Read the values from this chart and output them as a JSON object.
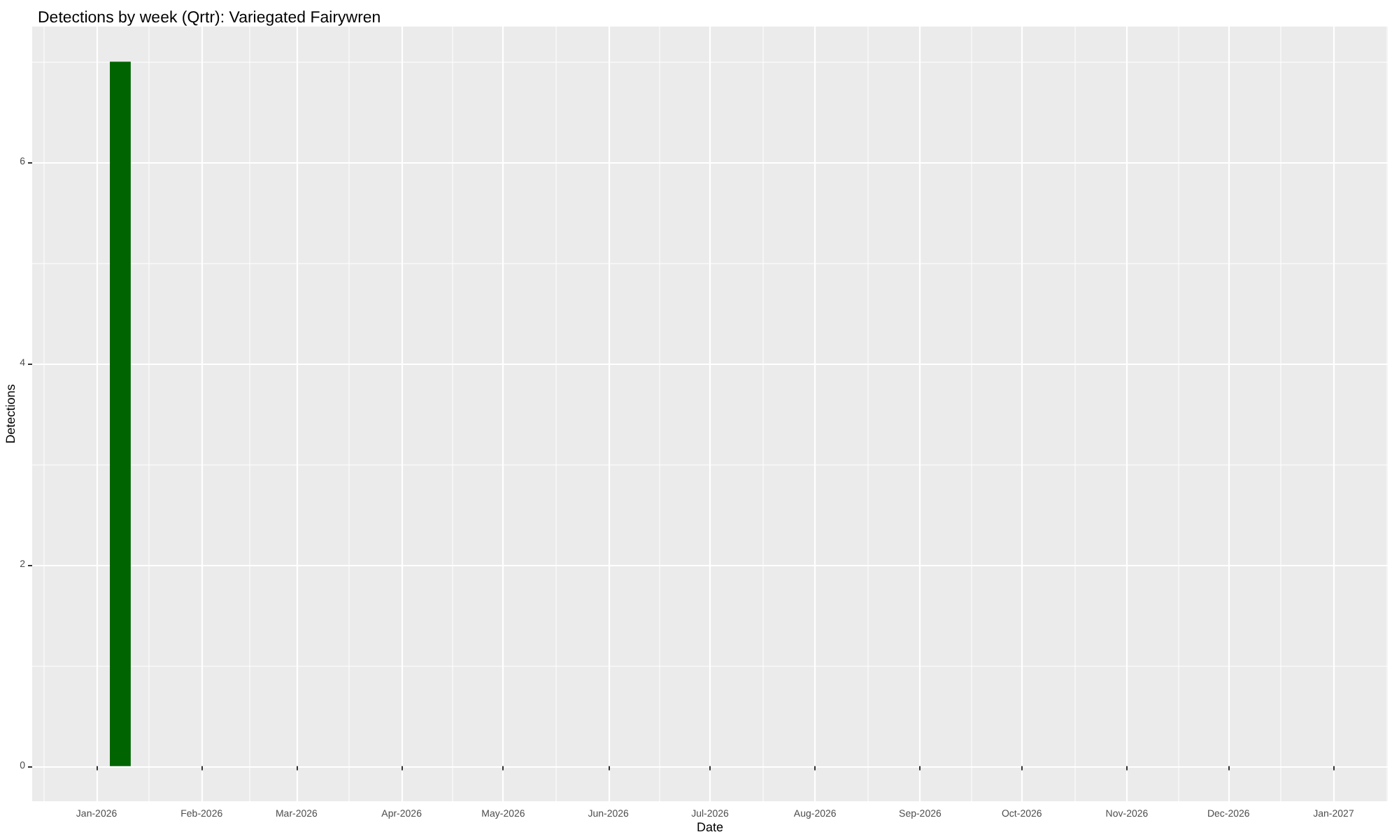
{
  "chart_data": {
    "type": "bar",
    "title": "Detections by week (Qrtr): Variegated Fairywren",
    "xlabel": "Date",
    "ylabel": "Detections",
    "x": [
      "2026-01-08"
    ],
    "values": [
      7
    ],
    "color": "#006400",
    "xlim": [
      "2025-12-13",
      "2027-01-17"
    ],
    "xticks": [
      {
        "value": "2026-01-01",
        "label": "Jan-2026"
      },
      {
        "value": "2026-02-01",
        "label": "Feb-2026"
      },
      {
        "value": "2026-03-01",
        "label": "Mar-2026"
      },
      {
        "value": "2026-04-01",
        "label": "Apr-2026"
      },
      {
        "value": "2026-05-01",
        "label": "May-2026"
      },
      {
        "value": "2026-06-01",
        "label": "Jun-2026"
      },
      {
        "value": "2026-07-01",
        "label": "Jul-2026"
      },
      {
        "value": "2026-08-01",
        "label": "Aug-2026"
      },
      {
        "value": "2026-09-01",
        "label": "Sep-2026"
      },
      {
        "value": "2026-10-01",
        "label": "Oct-2026"
      },
      {
        "value": "2026-11-01",
        "label": "Nov-2026"
      },
      {
        "value": "2026-12-01",
        "label": "Dec-2026"
      },
      {
        "value": "2027-01-01",
        "label": "Jan-2027"
      }
    ],
    "ylim": [
      -0.35,
      7.35
    ],
    "yticks": [
      0,
      2,
      4,
      6
    ],
    "grid": true
  }
}
